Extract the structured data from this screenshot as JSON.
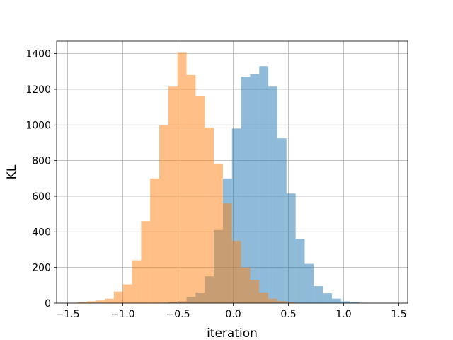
{
  "chart_data": {
    "type": "bar",
    "title": "",
    "xlabel": "iteration",
    "ylabel": "KL",
    "xlim": [
      -1.6,
      1.58
    ],
    "ylim": [
      0,
      1470
    ],
    "grid": true,
    "legend": "none",
    "xticks": [
      -1.5,
      -1.0,
      -0.5,
      0.0,
      0.5,
      1.0,
      1.5
    ],
    "xtick_labels": [
      "−1.5",
      "−1.0",
      "−0.5",
      "0.0",
      "0.5",
      "1.0",
      "1.5"
    ],
    "yticks": [
      0,
      200,
      400,
      600,
      800,
      1000,
      1200,
      1400
    ],
    "ytick_labels": [
      "0",
      "200",
      "400",
      "600",
      "800",
      "1000",
      "1200",
      "1400"
    ],
    "series": [
      {
        "color": "#1f77b4",
        "opacity": 0.5,
        "bin_start": -0.67,
        "bin_width": 0.0823,
        "values": [
          2,
          5,
          10,
          35,
          60,
          150,
          410,
          700,
          980,
          1270,
          1285,
          1330,
          1215,
          925,
          615,
          360,
          220,
          95,
          55,
          25,
          10,
          5,
          2
        ]
      },
      {
        "color": "#ff7f0e",
        "opacity": 0.5,
        "bin_start": -1.493,
        "bin_width": 0.0823,
        "values": [
          2,
          5,
          10,
          15,
          25,
          65,
          105,
          240,
          460,
          700,
          1000,
          1215,
          1405,
          1280,
          1160,
          985,
          780,
          560,
          350,
          200,
          130,
          60,
          25,
          12,
          5,
          2
        ]
      }
    ]
  }
}
